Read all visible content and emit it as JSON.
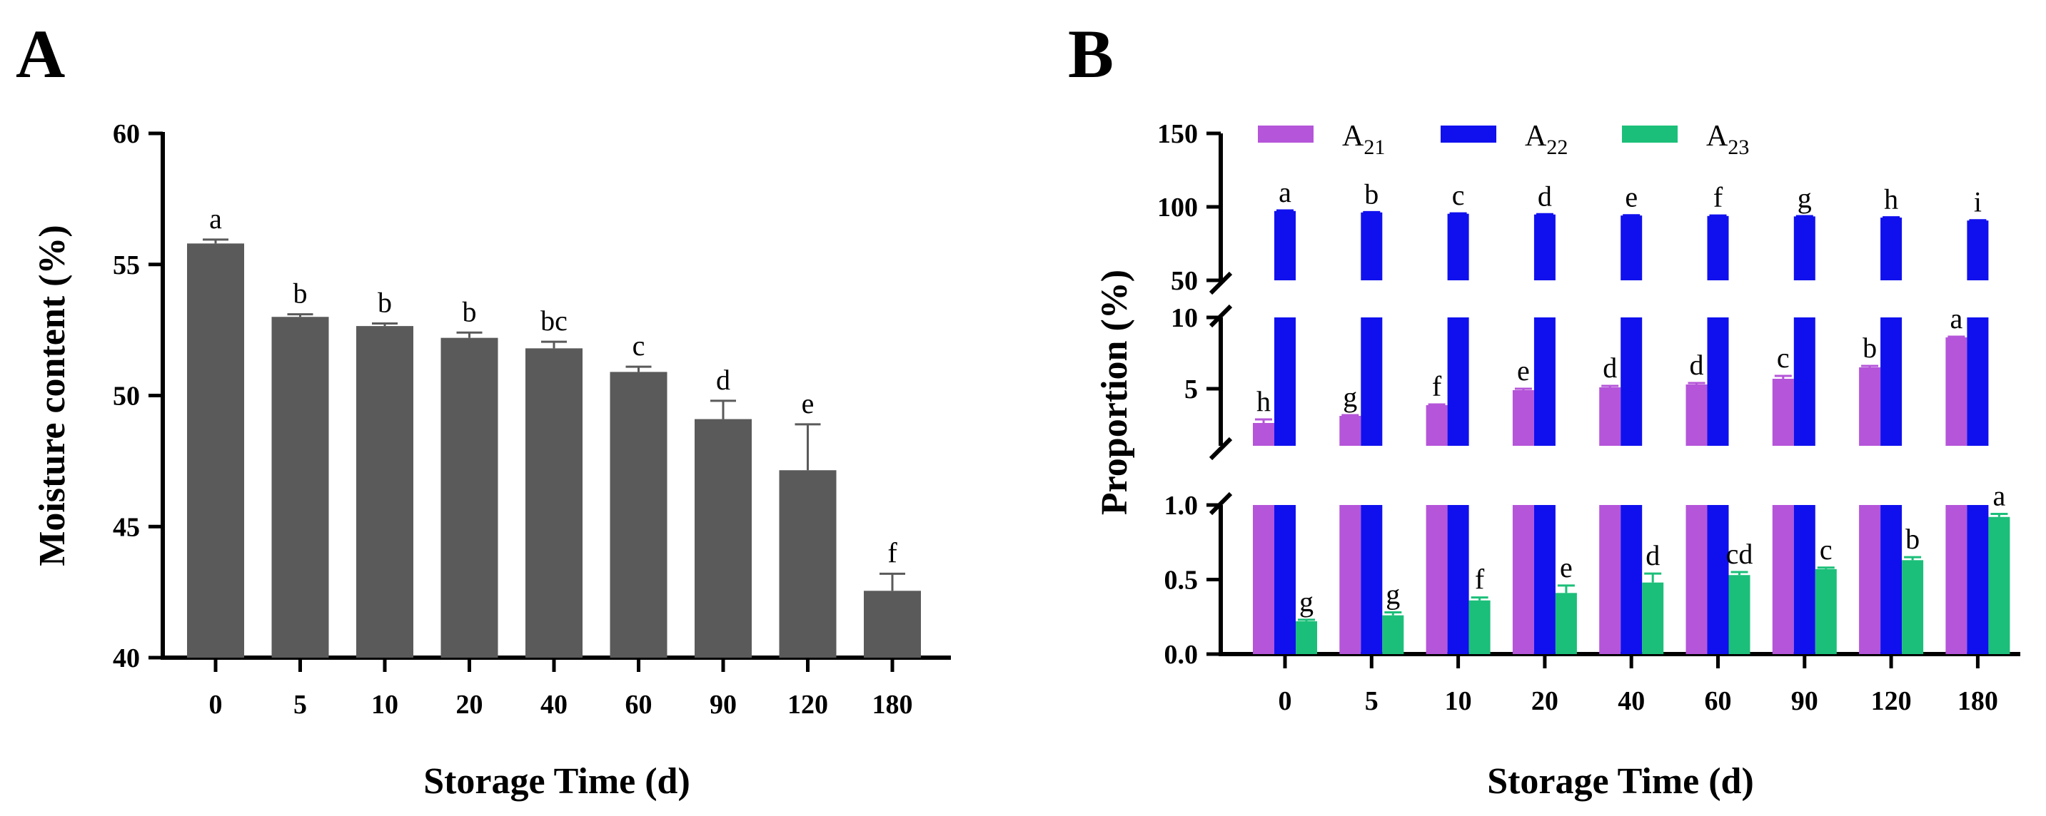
{
  "chart_data": [
    {
      "panel": "A",
      "type": "bar",
      "xlabel": "Storage Time (d)",
      "ylabel": "Moisture content (%)",
      "categories": [
        "0",
        "5",
        "10",
        "20",
        "40",
        "60",
        "90",
        "120",
        "180"
      ],
      "values": [
        55.8,
        53.0,
        52.65,
        52.2,
        51.8,
        50.9,
        49.1,
        47.15,
        42.55
      ],
      "errors": [
        0.15,
        0.1,
        0.1,
        0.2,
        0.25,
        0.2,
        0.7,
        1.75,
        0.65
      ],
      "significance": [
        "a",
        "b",
        "b",
        "b",
        "bc",
        "c",
        "d",
        "e",
        "f"
      ],
      "ylim": [
        40,
        60
      ],
      "yticks": [
        "40",
        "45",
        "50",
        "55",
        "60"
      ],
      "colors": {
        "bar": "#5a5a5a"
      }
    },
    {
      "panel": "B",
      "type": "bar",
      "xlabel": "Storage Time (d)",
      "ylabel": "Proportion (%)",
      "categories": [
        "0",
        "5",
        "10",
        "20",
        "40",
        "60",
        "90",
        "120",
        "180"
      ],
      "axis_breaks": {
        "segments": [
          [
            0,
            1.0
          ],
          [
            1.0,
            10
          ],
          [
            50,
            150
          ]
        ],
        "yticks": [
          [
            "0.0",
            "0.5",
            "1.0"
          ],
          [
            "5",
            "10"
          ],
          [
            "50",
            "100",
            "150"
          ]
        ]
      },
      "series": [
        {
          "name": "A21",
          "legend_main": "A",
          "legend_sub": "21",
          "color": "#b555d9",
          "values": [
            2.6,
            3.1,
            3.85,
            4.9,
            5.1,
            5.3,
            5.7,
            6.5,
            8.6
          ],
          "errors": [
            0.25,
            0.05,
            0.05,
            0.1,
            0.1,
            0.1,
            0.2,
            0.1,
            0.05
          ],
          "significance": [
            "h",
            "g",
            "f",
            "e",
            "d",
            "d",
            "c",
            "b",
            "a"
          ]
        },
        {
          "name": "A22",
          "legend_main": "A",
          "legend_sub": "22",
          "color": "#1010ee",
          "values": [
            97.2,
            96.2,
            95.3,
            94.8,
            94.1,
            93.8,
            93.5,
            92.7,
            90.7
          ],
          "errors": [
            0.4,
            0.2,
            0.3,
            0.2,
            0.2,
            0.3,
            0.2,
            0.2,
            0.2
          ],
          "significance": [
            "a",
            "b",
            "c",
            "d",
            "e",
            "f",
            "g",
            "h",
            "i"
          ]
        },
        {
          "name": "A23",
          "legend_main": "A",
          "legend_sub": "23",
          "color": "#1bbf79",
          "values": [
            0.22,
            0.26,
            0.36,
            0.41,
            0.48,
            0.53,
            0.57,
            0.63,
            0.92
          ],
          "errors": [
            0.01,
            0.02,
            0.02,
            0.05,
            0.06,
            0.02,
            0.01,
            0.02,
            0.02
          ],
          "significance": [
            "g",
            "g",
            "f",
            "e",
            "d",
            "cd",
            "c",
            "b",
            "a"
          ]
        }
      ]
    }
  ]
}
